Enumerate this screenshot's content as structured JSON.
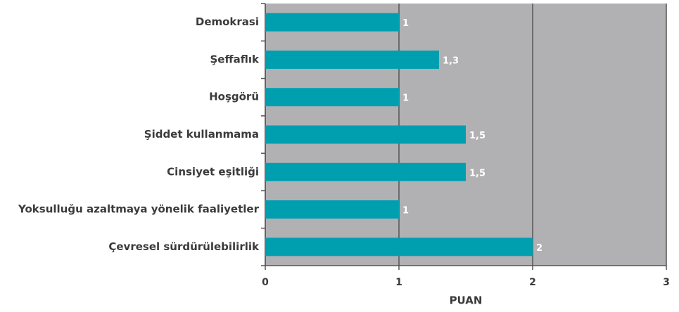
{
  "chart_data": {
    "type": "bar",
    "orientation": "horizontal",
    "categories": [
      "Demokrasi",
      "Şeffaflık",
      "Hoşgörü",
      "Şiddet kullanmama",
      "Cinsiyet eşitliği",
      "Yoksulluğu azaltmaya yönelik faaliyetler",
      "Çevresel sürdürülebilirlik"
    ],
    "values": [
      1,
      1.3,
      1,
      1.5,
      1.5,
      1,
      2
    ],
    "value_labels": [
      "1",
      "1,3",
      "1",
      "1,5",
      "1,5",
      "1",
      "2"
    ],
    "color": "#009fb0",
    "xlim": [
      0,
      3
    ],
    "xticks": [
      0,
      1,
      2,
      3
    ],
    "xlabel": "PUAN",
    "grid": true
  }
}
